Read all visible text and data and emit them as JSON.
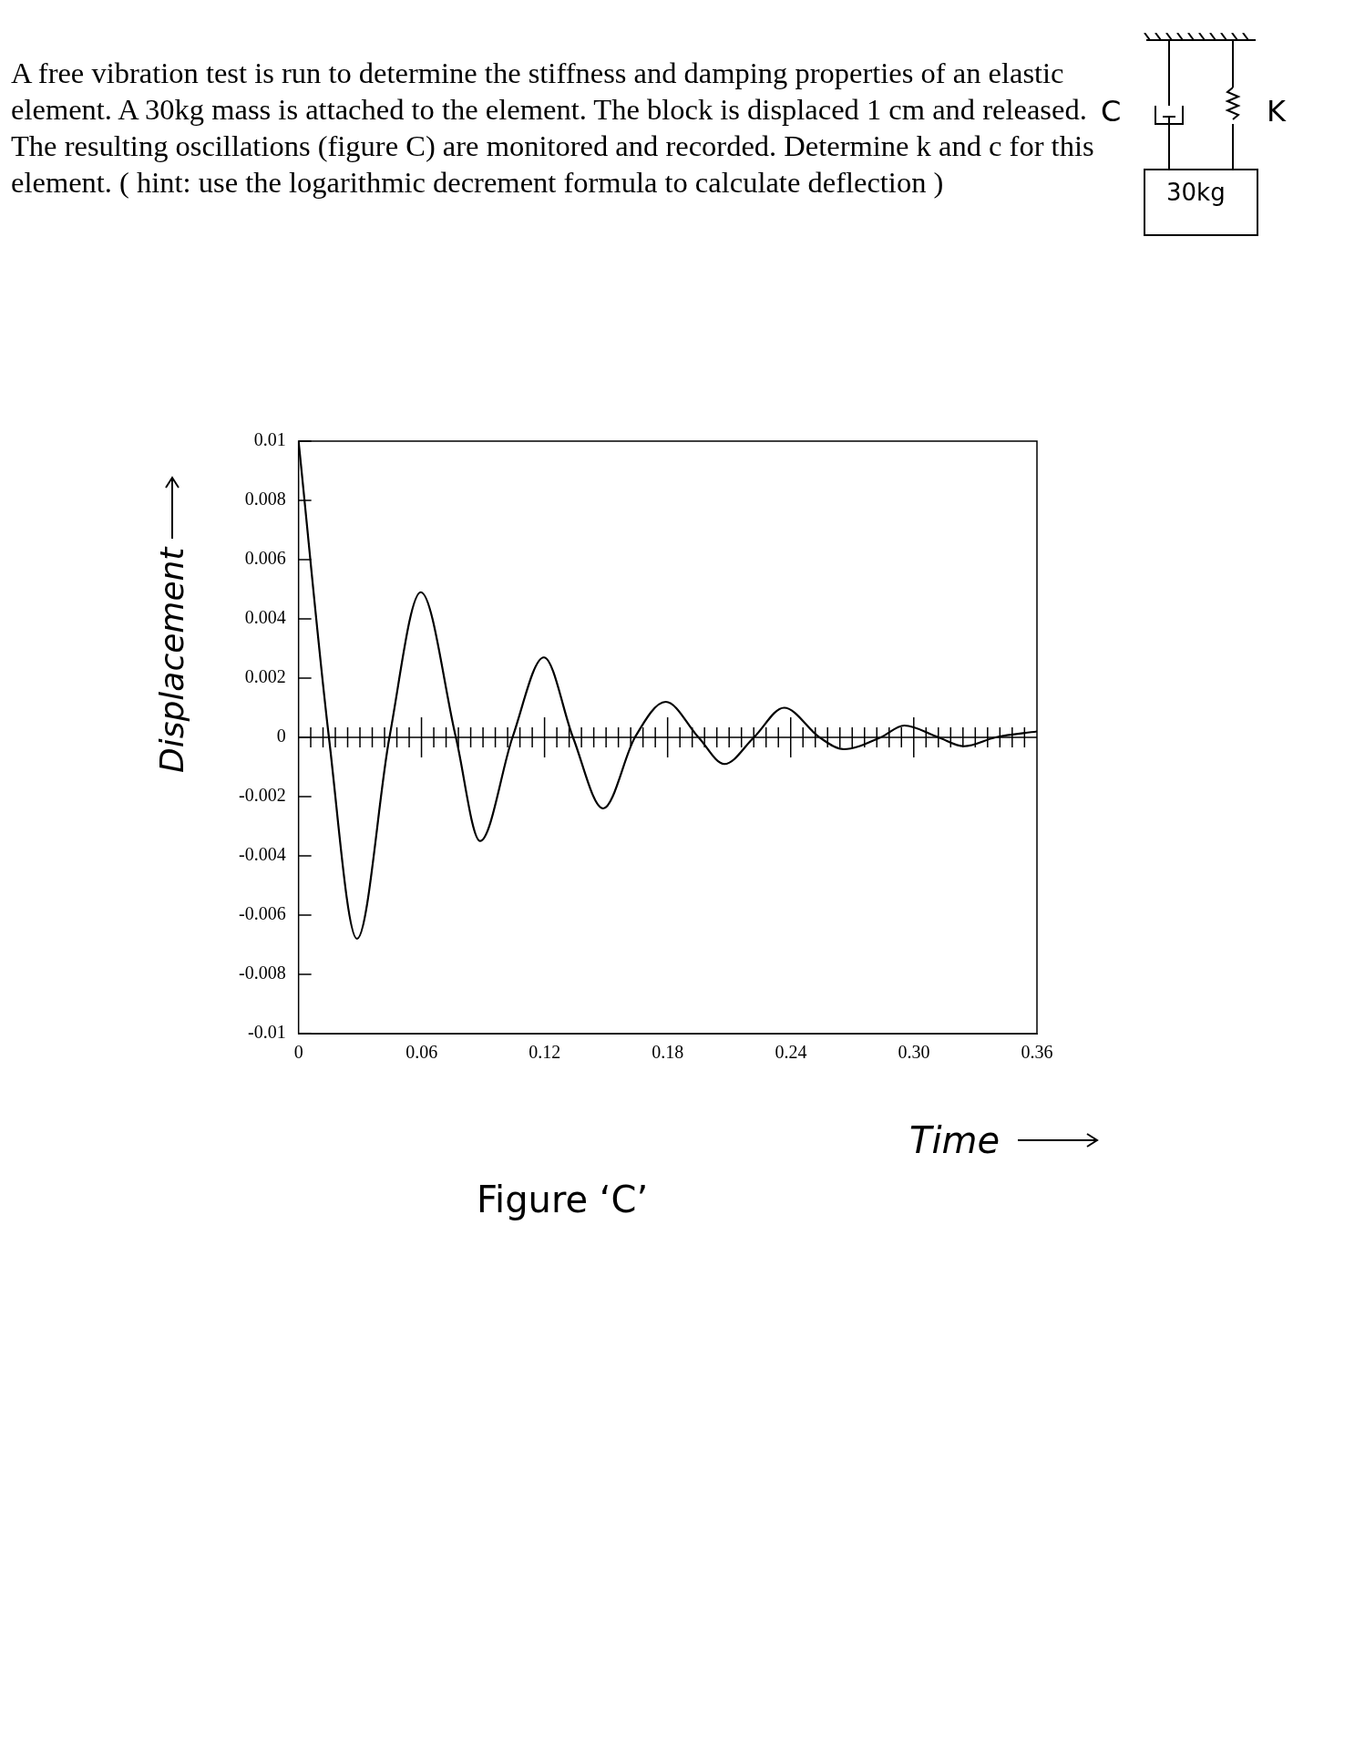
{
  "chart_data": {
    "type": "line",
    "title": "A free vibration test is run to determine the stiffness and damping properties of an elastic element. A 30kg mass is attached to the element. The block is displaced 1 cm and released. The resulting oscillations (figure C) are monitored and recorded. Determine k and c for this element. ( hint: use the logarithmic decrement formula to calculate deflection )",
    "xlabel": "Time",
    "ylabel": "Displacement",
    "annotations": [
      "Figure ‘C’",
      "C",
      "K",
      "30kg"
    ],
    "x": [
      0,
      0.0148,
      0.0285,
      0.0443,
      0.0596,
      0.0767,
      0.0885,
      0.1043,
      0.1196,
      0.1338,
      0.1485,
      0.164,
      0.179,
      0.195,
      0.2076,
      0.222,
      0.2367,
      0.254,
      0.2658,
      0.2838,
      0.2953,
      0.312,
      0.3244,
      0.3398,
      0.36
    ],
    "series": [
      {
        "color": "#000000",
        "values": [
          0.01,
          0,
          -0.0068,
          0,
          0.0049,
          0,
          -0.0035,
          0,
          0.0027,
          0,
          -0.0024,
          0,
          0.0012,
          0,
          -0.0009,
          0,
          0.001,
          0,
          -0.0004,
          0,
          0.0004,
          0,
          -0.0003,
          0,
          0.0002
        ]
      }
    ],
    "xlim": [
      0,
      0.36
    ],
    "xticks": [
      0,
      0.06,
      0.12,
      0.18,
      0.24,
      {
        "value": 0.3,
        "label": "0.30"
      },
      0.36
    ],
    "ylim": [
      -0.01,
      0.01
    ],
    "yticks": [
      -0.01,
      -0.008,
      -0.006,
      -0.004,
      -0.002,
      0,
      0.002,
      0.004,
      0.006,
      0.008,
      0.01
    ],
    "ref_lines": [
      {
        "axis": "y",
        "value": 0,
        "color": "#000000"
      }
    ],
    "grid": false,
    "legend": false,
    "marker": "none",
    "line_style": "solid"
  }
}
